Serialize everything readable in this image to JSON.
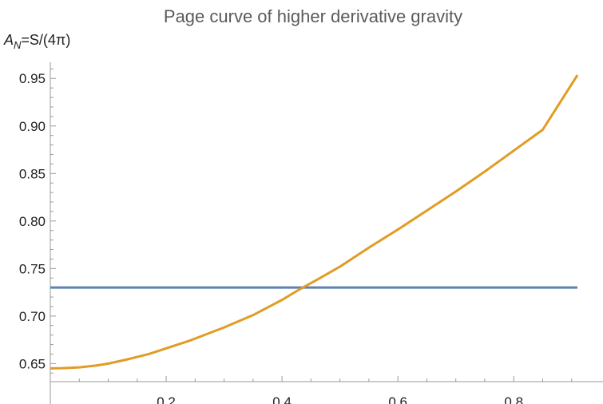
{
  "chart_data": {
    "type": "line",
    "title": "Page curve of higher derivative gravity",
    "ylabel_main": "A",
    "ylabel_sub": "N",
    "ylabel_rest": "=S/(4π)",
    "xlabel": "",
    "xlim": [
      0.0,
      0.91
    ],
    "ylim": [
      0.631,
      0.967
    ],
    "x_ticks": [
      0.2,
      0.4,
      0.6,
      0.8
    ],
    "x_tick_labels": [
      "0.2",
      "0.4",
      "0.6",
      "0.8"
    ],
    "y_ticks": [
      0.65,
      0.7,
      0.75,
      0.8,
      0.85,
      0.9,
      0.95
    ],
    "y_tick_labels": [
      "0.65",
      "0.70",
      "0.75",
      "0.80",
      "0.85",
      "0.90",
      "0.95"
    ],
    "grid": false,
    "series": [
      {
        "color": "#5e81b5",
        "x": [
          0.0,
          0.91
        ],
        "y": [
          0.73,
          0.73
        ]
      },
      {
        "color": "#e19c24",
        "x": [
          0.0,
          0.02,
          0.05,
          0.08,
          0.1,
          0.13,
          0.17,
          0.2,
          0.24,
          0.3,
          0.35,
          0.4,
          0.43,
          0.46,
          0.5,
          0.55,
          0.6,
          0.65,
          0.7,
          0.75,
          0.8,
          0.85,
          0.91
        ],
        "y": [
          0.645,
          0.6452,
          0.646,
          0.648,
          0.65,
          0.654,
          0.66,
          0.666,
          0.674,
          0.688,
          0.701,
          0.717,
          0.728,
          0.738,
          0.752,
          0.772,
          0.791,
          0.811,
          0.831,
          0.852,
          0.874,
          0.896,
          0.9535
        ]
      }
    ]
  }
}
